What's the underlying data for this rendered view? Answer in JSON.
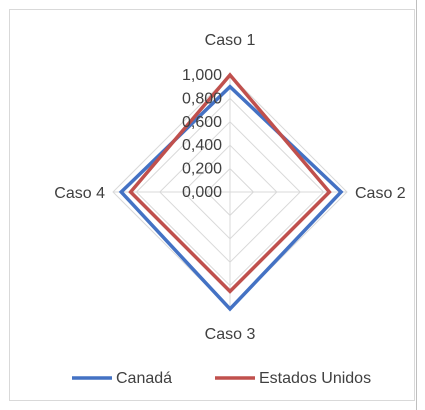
{
  "chart_data": {
    "type": "radar",
    "categories": [
      "Caso 1",
      "Caso 2",
      "Caso 3",
      "Caso 4"
    ],
    "tick_labels": [
      "0,000",
      "0,200",
      "0,400",
      "0,600",
      "0,800",
      "1,000"
    ],
    "rlim": [
      0,
      1.0
    ],
    "grid": true,
    "legend_position": "bottom",
    "series": [
      {
        "name": "Canadá",
        "values": [
          0.9,
          0.95,
          1.0,
          0.93
        ],
        "color": "#4472c4"
      },
      {
        "name": "Estados Unidos",
        "values": [
          1.0,
          0.85,
          0.85,
          0.85
        ],
        "color": "#c0504d"
      }
    ]
  }
}
